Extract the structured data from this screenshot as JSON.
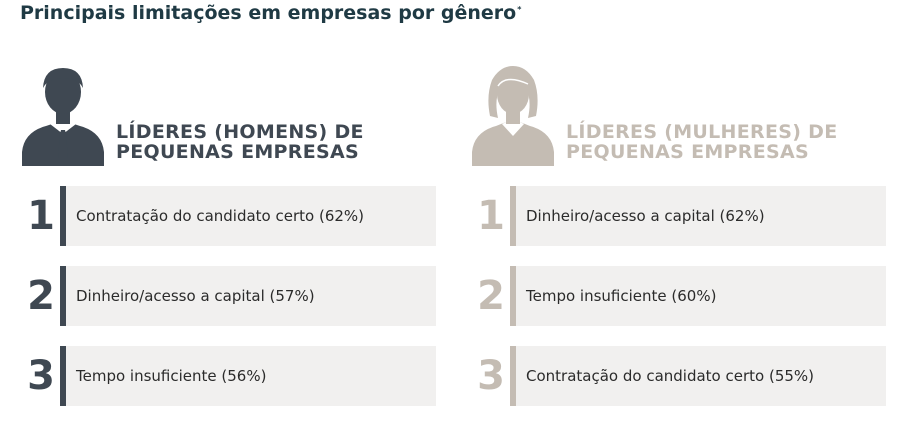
{
  "title": "Principais limitações em empresas por gênero",
  "title_mark": "*",
  "colors": {
    "men": "#3f4852",
    "women": "#c4bcb3",
    "row_bg": "#f1f0ef",
    "title": "#1f3a44"
  },
  "chart_data": {
    "type": "table",
    "title": "Principais limitações em empresas por gênero",
    "groups": [
      {
        "heading_line1": "LÍDERES (HOMENS) DE",
        "heading_line2": "PEQUENAS EMPRESAS",
        "icon": "man-icon",
        "items": [
          {
            "rank": "1",
            "label": "Contratação do candidato certo (62%)",
            "value": 62
          },
          {
            "rank": "2",
            "label": "Dinheiro/acesso a capital (57%)",
            "value": 57
          },
          {
            "rank": "3",
            "label": "Tempo insuficiente (56%)",
            "value": 56
          }
        ]
      },
      {
        "heading_line1": "LÍDERES (MULHERES) DE",
        "heading_line2": "PEQUENAS EMPRESAS",
        "icon": "woman-icon",
        "items": [
          {
            "rank": "1",
            "label": "Dinheiro/acesso a capital (62%)",
            "value": 62
          },
          {
            "rank": "2",
            "label": "Tempo insuficiente (60%)",
            "value": 60
          },
          {
            "rank": "3",
            "label": "Contratação do candidato certo (55%)",
            "value": 55
          }
        ]
      }
    ]
  }
}
